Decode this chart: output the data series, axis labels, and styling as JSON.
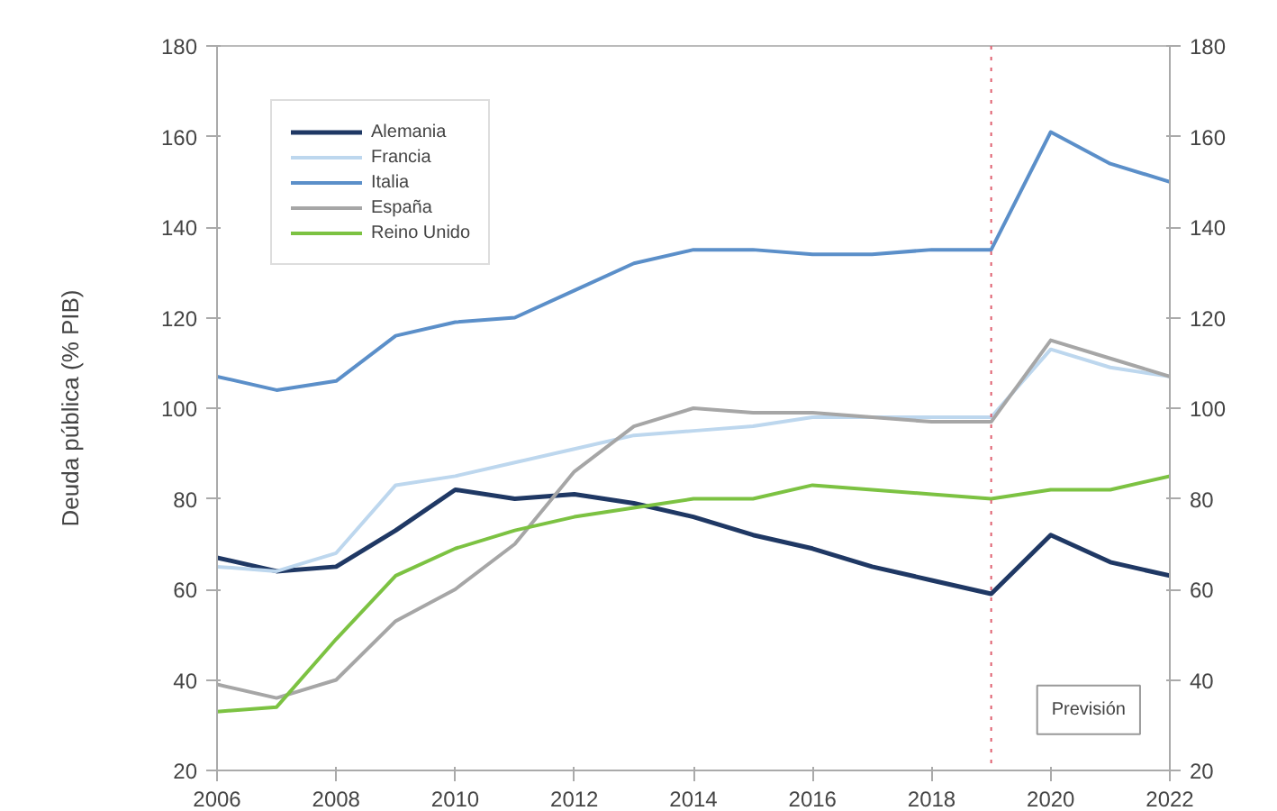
{
  "chart_data": {
    "type": "line",
    "ylabel": "Deuda pública (% PIB)",
    "x": [
      2006,
      2007,
      2008,
      2009,
      2010,
      2011,
      2012,
      2013,
      2014,
      2015,
      2016,
      2017,
      2018,
      2019,
      2020,
      2021,
      2022
    ],
    "xlim": [
      2006,
      2022
    ],
    "xticks": [
      2006,
      2008,
      2010,
      2012,
      2014,
      2016,
      2018,
      2020,
      2022
    ],
    "ylim": [
      20,
      180
    ],
    "yticks": [
      20,
      40,
      60,
      80,
      100,
      120,
      140,
      160,
      180
    ],
    "y2lim": [
      20,
      180
    ],
    "y2ticks": [
      20,
      40,
      60,
      80,
      100,
      120,
      140,
      160,
      180
    ],
    "grid": false,
    "legend": "top left",
    "marker": "none",
    "line_style": "solid",
    "series": [
      {
        "name": "Alemania",
        "color": "#1f3864",
        "values": [
          67,
          64,
          65,
          73,
          82,
          80,
          81,
          79,
          76,
          72,
          69,
          65,
          62,
          59,
          72,
          66,
          63
        ]
      },
      {
        "name": "Francia",
        "color": "#bdd7ee",
        "values": [
          65,
          64,
          68,
          83,
          85,
          88,
          91,
          94,
          95,
          96,
          98,
          98,
          98,
          98,
          113,
          109,
          107
        ]
      },
      {
        "name": "Italia",
        "color": "#5b8fc9",
        "values": [
          107,
          104,
          106,
          116,
          119,
          120,
          126,
          132,
          135,
          135,
          134,
          134,
          135,
          135,
          161,
          154,
          150
        ]
      },
      {
        "name": "España",
        "color": "#a6a6a6",
        "values": [
          39,
          36,
          40,
          53,
          60,
          70,
          86,
          96,
          100,
          99,
          99,
          98,
          97,
          97,
          115,
          111,
          107
        ]
      },
      {
        "name": "Reino Unido",
        "color": "#7cc242",
        "values": [
          33,
          34,
          49,
          63,
          69,
          73,
          76,
          78,
          80,
          80,
          83,
          82,
          81,
          80,
          82,
          82,
          85
        ]
      }
    ],
    "ref_lines": [
      {
        "axis": "x",
        "value": 2019,
        "label": null,
        "color": "#e06070",
        "line_style": "dotted"
      }
    ],
    "annotations": [
      "Previsión"
    ]
  }
}
